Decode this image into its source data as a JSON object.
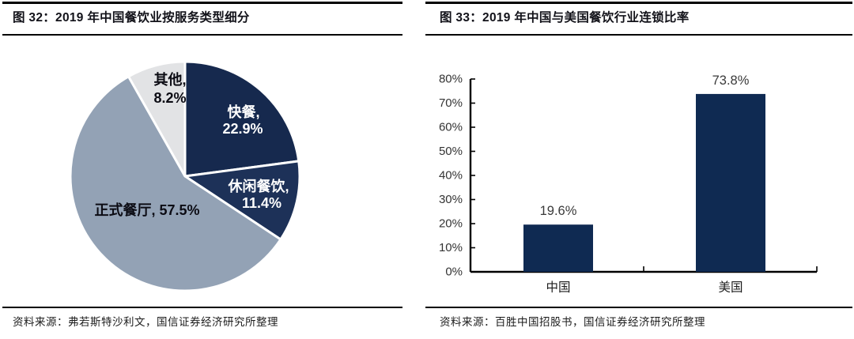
{
  "panels": {
    "left": {
      "title": "图 32：2019 年中国餐饮业按服务类型细分",
      "source": "资料来源：弗若斯特沙利文，国信证券经济研究所整理"
    },
    "right": {
      "title": "图 33：2019 年中国与美国餐饮行业连锁比率",
      "source": "资料来源：百胜中国招股书，国信证券经济研究所整理"
    }
  },
  "chart_data": [
    {
      "type": "pie",
      "title": "2019 年中国餐饮业按服务类型细分",
      "labels": [
        "快餐",
        "休闲餐饮",
        "正式餐厅",
        "其他"
      ],
      "values": [
        22.9,
        11.4,
        57.5,
        8.2
      ],
      "slice_colors": [
        "#16294e",
        "#1d3158",
        "#93a2b5",
        "#e2e3e5"
      ],
      "label_colors": [
        "#ffffff",
        "#ffffff",
        "#0c0c14",
        "#0c0c14"
      ],
      "start_angle_deg": 0,
      "direction": "clockwise",
      "slice_border_color": "#ffffff"
    },
    {
      "type": "bar",
      "title": "2019 年中国与美国餐饮行业连锁比率",
      "categories": [
        "中国",
        "美国"
      ],
      "values": [
        19.6,
        73.8
      ],
      "value_labels": [
        "19.6%",
        "73.8%"
      ],
      "bar_color": "#0f2a52",
      "ylim": [
        0,
        80
      ],
      "ytick_step": 10,
      "ytick_labels": [
        "0%",
        "10%",
        "20%",
        "30%",
        "40%",
        "50%",
        "60%",
        "70%",
        "80%"
      ],
      "grid": false,
      "legend": "none",
      "axis_color": "#000000",
      "tick_label_color": "#333333"
    }
  ]
}
